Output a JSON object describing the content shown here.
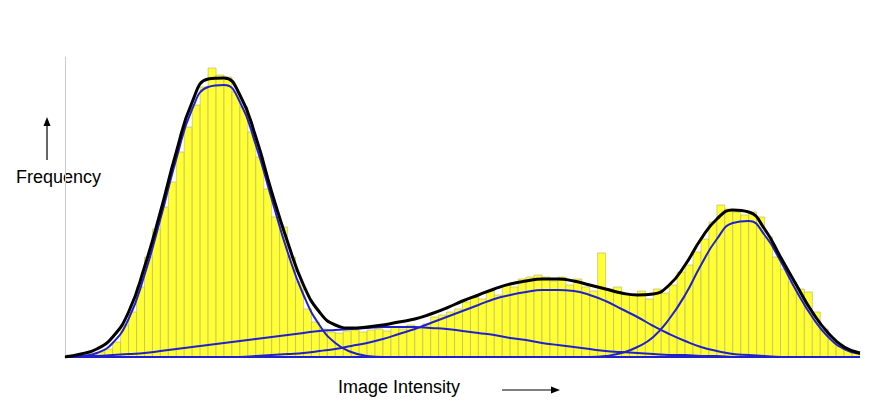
{
  "chart_data": {
    "type": "histogram",
    "xlabel": "Image Intensity",
    "ylabel": "Frequency",
    "xlim": [
      0,
      100
    ],
    "ylim": [
      0,
      300
    ],
    "grid": false,
    "tick_labels": false,
    "color": "#ffff33",
    "bins": [
      0,
      1,
      2,
      3,
      4,
      5,
      6,
      7,
      8,
      9,
      10,
      11,
      12,
      13,
      14,
      15,
      16,
      17,
      18,
      19,
      20,
      21,
      22,
      23,
      24,
      25,
      26,
      27,
      28,
      29,
      30,
      31,
      32,
      33,
      34,
      35,
      36,
      37,
      38,
      39,
      40,
      41,
      42,
      43,
      44,
      45,
      46,
      47,
      48,
      49,
      50,
      51,
      52,
      53,
      54,
      55,
      56,
      57,
      58,
      59,
      60,
      61,
      62,
      63,
      64,
      65,
      66,
      67,
      68,
      69,
      70,
      71,
      72,
      73,
      74,
      75,
      76,
      77,
      78,
      79,
      80,
      81,
      82,
      83,
      84,
      85,
      86,
      87,
      88,
      89,
      90,
      91,
      92,
      93,
      94,
      95,
      96,
      97,
      98,
      99,
      100
    ],
    "counts": [
      2,
      2,
      3,
      4,
      5,
      8,
      15,
      32,
      45,
      70,
      100,
      128,
      150,
      175,
      205,
      230,
      252,
      270,
      289,
      282,
      280,
      265,
      250,
      225,
      200,
      168,
      140,
      130,
      100,
      75,
      48,
      35,
      28,
      25,
      24,
      26,
      27,
      25,
      27,
      28,
      26,
      30,
      28,
      32,
      30,
      33,
      40,
      42,
      45,
      48,
      55,
      60,
      58,
      66,
      62,
      72,
      70,
      78,
      80,
      82,
      80,
      76,
      80,
      72,
      78,
      70,
      66,
      104,
      68,
      70,
      63,
      62,
      66,
      58,
      68,
      64,
      72,
      85,
      92,
      105,
      118,
      135,
      152,
      148,
      145,
      142,
      145,
      140,
      120,
      100,
      88,
      75,
      68,
      65,
      45,
      28,
      18,
      12,
      8,
      5
    ],
    "curves": {
      "type": "line",
      "x": [
        0,
        2,
        4,
        6,
        8,
        10,
        12,
        14,
        16,
        18,
        20,
        22,
        24,
        26,
        28,
        30,
        32,
        34,
        36,
        38,
        40,
        42,
        44,
        46,
        48,
        50,
        52,
        54,
        56,
        58,
        60,
        62,
        64,
        66,
        68,
        70,
        72,
        74,
        76,
        78,
        80,
        82,
        84,
        86,
        88,
        90,
        92,
        94,
        96,
        98,
        100
      ],
      "series": [
        {
          "color": "#000000",
          "values": [
            0,
            3,
            8,
            20,
            45,
            90,
            145,
            205,
            255,
            278,
            279,
            262,
            220,
            165,
            115,
            72,
            45,
            32,
            29,
            30,
            32,
            35,
            38,
            43,
            49,
            56,
            62,
            68,
            73,
            76,
            78,
            78,
            76,
            72,
            68,
            64,
            62,
            63,
            72,
            92,
            118,
            138,
            147,
            145,
            128,
            100,
            72,
            45,
            24,
            10,
            4
          ]
        },
        {
          "color": "#2020d0",
          "values": [
            0,
            1,
            4,
            14,
            38,
            82,
            138,
            198,
            248,
            270,
            272,
            255,
            212,
            158,
            105,
            62,
            32,
            14,
            5,
            1,
            0,
            0,
            0,
            0,
            0,
            0,
            0,
            0,
            0,
            0,
            0,
            0,
            0,
            0,
            0,
            0,
            0,
            0,
            0,
            0,
            0,
            0,
            0,
            0,
            0,
            0,
            0,
            0,
            0,
            0,
            0
          ]
        },
        {
          "color": "#2020d0",
          "values": [
            0,
            1,
            1,
            2,
            3,
            4,
            6,
            8,
            10,
            12,
            14,
            16,
            18,
            20,
            22,
            24,
            26,
            27,
            28,
            29,
            30,
            30,
            30,
            29,
            28,
            26,
            24,
            22,
            19,
            17,
            14,
            12,
            10,
            8,
            6,
            5,
            4,
            3,
            2,
            2,
            1,
            1,
            0,
            0,
            0,
            0,
            0,
            0,
            0,
            0,
            0
          ]
        },
        {
          "color": "#2020d0",
          "values": [
            0,
            0,
            0,
            0,
            0,
            0,
            0,
            0,
            0,
            0,
            0,
            0,
            1,
            2,
            3,
            4,
            6,
            8,
            11,
            14,
            18,
            23,
            28,
            34,
            40,
            46,
            52,
            58,
            62,
            65,
            67,
            67,
            66,
            62,
            56,
            48,
            40,
            31,
            23,
            16,
            10,
            6,
            3,
            2,
            1,
            0,
            0,
            0,
            0,
            0,
            0
          ]
        },
        {
          "color": "#2020d0",
          "values": [
            0,
            0,
            0,
            0,
            0,
            0,
            0,
            0,
            0,
            0,
            0,
            0,
            0,
            0,
            0,
            0,
            0,
            0,
            0,
            0,
            0,
            0,
            0,
            0,
            0,
            0,
            0,
            0,
            0,
            0,
            0,
            0,
            0,
            0,
            1,
            4,
            10,
            20,
            38,
            62,
            92,
            118,
            134,
            136,
            122,
            96,
            66,
            40,
            20,
            8,
            3
          ]
        }
      ]
    }
  }
}
